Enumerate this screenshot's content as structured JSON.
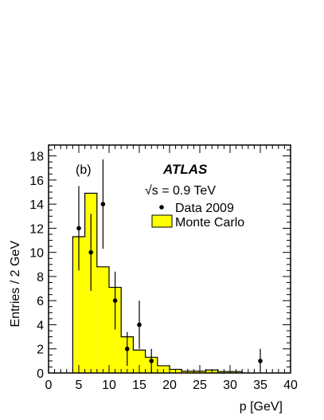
{
  "chart_data": {
    "type": "histogram",
    "panel_label": "(b)",
    "experiment_label": "ATLAS",
    "energy_label": "√s = 0.9 TeV",
    "xlabel": "p [GeV]",
    "ylabel": "Entries / 2 GeV",
    "xlim": [
      0,
      40
    ],
    "ylim": [
      0,
      18.9
    ],
    "x_ticks": [
      0,
      5,
      10,
      15,
      20,
      25,
      30,
      35,
      40
    ],
    "y_ticks": [
      0,
      2,
      4,
      6,
      8,
      10,
      12,
      14,
      16,
      18
    ],
    "colors": {
      "mc_fill": "#ffff00",
      "line": "#000000",
      "frame": "#000000"
    },
    "legend": [
      {
        "label": "Data 2009",
        "style": "marker"
      },
      {
        "label": "Monte Carlo",
        "style": "filled-box"
      }
    ],
    "series": [
      {
        "name": "Monte Carlo",
        "style": "filled-histogram",
        "bins": [
          {
            "x0": 4,
            "x1": 6,
            "y": 11.3
          },
          {
            "x0": 6,
            "x1": 8,
            "y": 14.9
          },
          {
            "x0": 8,
            "x1": 10,
            "y": 8.8
          },
          {
            "x0": 10,
            "x1": 12,
            "y": 7.1
          },
          {
            "x0": 12,
            "x1": 14,
            "y": 3.0
          },
          {
            "x0": 14,
            "x1": 16,
            "y": 1.9
          },
          {
            "x0": 16,
            "x1": 18,
            "y": 1.3
          },
          {
            "x0": 18,
            "x1": 20,
            "y": 0.6
          },
          {
            "x0": 20,
            "x1": 22,
            "y": 0.3
          },
          {
            "x0": 22,
            "x1": 24,
            "y": 0.15
          },
          {
            "x0": 24,
            "x1": 26,
            "y": 0.15
          },
          {
            "x0": 26,
            "x1": 28,
            "y": 0.25
          },
          {
            "x0": 28,
            "x1": 30,
            "y": 0.12
          },
          {
            "x0": 30,
            "x1": 32,
            "y": 0.12
          }
        ]
      },
      {
        "name": "Data 2009",
        "style": "points-with-errors",
        "points": [
          {
            "x": 5,
            "y": 12,
            "err": 3.5
          },
          {
            "x": 7,
            "y": 10,
            "err": 3.2
          },
          {
            "x": 9,
            "y": 14,
            "err": 3.7
          },
          {
            "x": 11,
            "y": 6,
            "err": 2.4
          },
          {
            "x": 13,
            "y": 2,
            "err": 1.4
          },
          {
            "x": 15,
            "y": 4,
            "err": 2.0
          },
          {
            "x": 17,
            "y": 1,
            "err": 1.0
          },
          {
            "x": 35,
            "y": 1,
            "err": 1.0
          }
        ]
      }
    ]
  }
}
